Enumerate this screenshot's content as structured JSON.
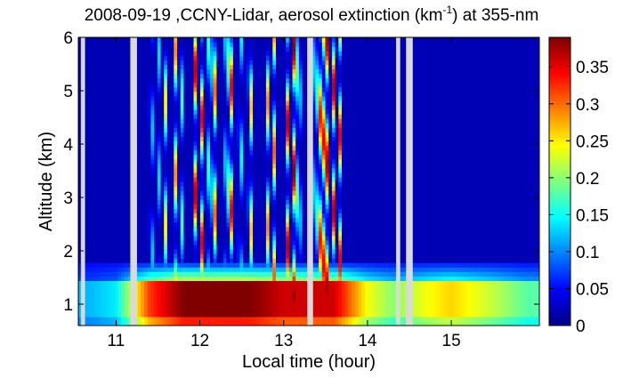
{
  "chart_data": {
    "type": "heatmap",
    "title": {
      "prefix": "2008-09-19 ,CCNY-Lidar, aerosol extinction (km",
      "sup": "-1",
      "suffix": ") at 355-nm"
    },
    "xlabel": "Local time (hour)",
    "ylabel": "Altitude (km)",
    "xlim": [
      10.55,
      16.05
    ],
    "ylim": [
      0.6,
      6
    ],
    "x_ticks": [
      11,
      12,
      13,
      14,
      15
    ],
    "y_ticks": [
      1,
      2,
      3,
      4,
      5,
      6
    ],
    "colorbar": {
      "range": [
        0,
        0.39
      ],
      "ticks": [
        0,
        0.05,
        0.1,
        0.15,
        0.2,
        0.25,
        0.3,
        0.35
      ],
      "tick_labels": [
        "0",
        "0.05",
        "0.1",
        "0.15",
        "0.2",
        "0.25",
        "0.3",
        "0.35"
      ],
      "colormap": "jet"
    },
    "data_gaps_hours": [
      [
        10.58,
        10.63
      ],
      [
        11.17,
        11.25
      ],
      [
        13.28,
        13.35
      ],
      [
        14.34,
        14.39
      ],
      [
        14.46,
        14.54
      ]
    ],
    "boundary_layer_top_km": 1.45,
    "background_extinction": 0.02,
    "aerosol_layer": [
      {
        "x": 10.7,
        "extinction": 0.12
      },
      {
        "x": 11.0,
        "extinction": 0.14
      },
      {
        "x": 11.4,
        "extinction": 0.32
      },
      {
        "x": 11.8,
        "extinction": 0.39
      },
      {
        "x": 12.2,
        "extinction": 0.39
      },
      {
        "x": 12.6,
        "extinction": 0.39
      },
      {
        "x": 13.0,
        "extinction": 0.36
      },
      {
        "x": 13.6,
        "extinction": 0.36
      },
      {
        "x": 14.0,
        "extinction": 0.24
      },
      {
        "x": 14.3,
        "extinction": 0.2
      },
      {
        "x": 14.7,
        "extinction": 0.24
      },
      {
        "x": 15.0,
        "extinction": 0.26
      },
      {
        "x": 15.5,
        "extinction": 0.22
      },
      {
        "x": 15.9,
        "extinction": 0.18
      }
    ],
    "cloud_streaks": [
      {
        "x": 11.42,
        "peak": 0.2
      },
      {
        "x": 11.5,
        "peak": 0.2
      },
      {
        "x": 11.6,
        "peak": 0.3
      },
      {
        "x": 11.72,
        "peak": 0.39
      },
      {
        "x": 11.78,
        "peak": 0.2
      },
      {
        "x": 11.95,
        "peak": 0.39
      },
      {
        "x": 12.03,
        "peak": 0.39
      },
      {
        "x": 12.12,
        "peak": 0.39
      },
      {
        "x": 12.18,
        "peak": 0.3
      },
      {
        "x": 12.32,
        "peak": 0.39
      },
      {
        "x": 12.37,
        "peak": 0.39
      },
      {
        "x": 12.48,
        "peak": 0.25
      },
      {
        "x": 12.6,
        "peak": 0.39
      },
      {
        "x": 12.82,
        "peak": 0.39
      },
      {
        "x": 12.88,
        "peak": 0.35
      },
      {
        "x": 13.05,
        "peak": 0.39
      },
      {
        "x": 13.12,
        "peak": 0.39
      },
      {
        "x": 13.18,
        "peak": 0.39
      },
      {
        "x": 13.38,
        "peak": 0.39
      },
      {
        "x": 13.43,
        "peak": 0.39
      },
      {
        "x": 13.47,
        "peak": 0.39
      },
      {
        "x": 13.52,
        "peak": 0.39
      },
      {
        "x": 13.6,
        "peak": 0.39
      },
      {
        "x": 13.68,
        "peak": 0.39
      }
    ]
  }
}
